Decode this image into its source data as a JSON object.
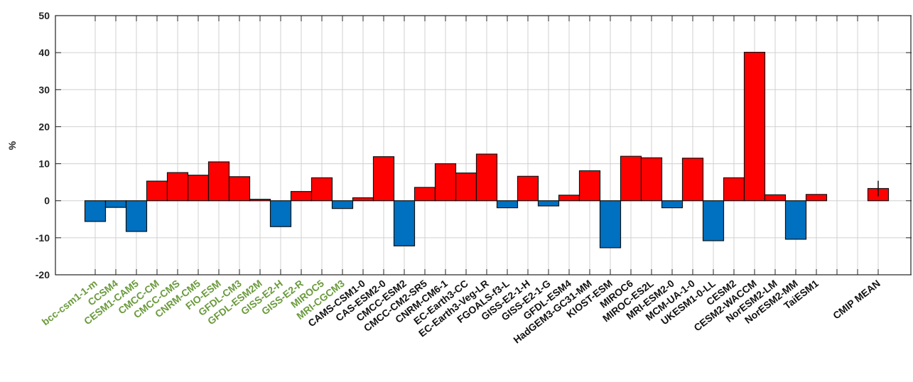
{
  "chart_data": {
    "type": "bar",
    "y_label": "%",
    "categories": [
      "bcc-csm1-1-m",
      "CCSM4",
      "CESM1-CAM5",
      "CMCC-CM",
      "CMCC-CMS",
      "CNRM-CM5",
      "FIO-ESM",
      "GFDL-CM3",
      "GFDL-ESM2M",
      "GISS-E2-H",
      "GISS-E2-R",
      "MIROC5",
      "MRI-CGCM3",
      "CAMS-CSM1-0",
      "CAS-ESM2-0",
      "CMCC-ESM2",
      "CMCC-CM2-SR5",
      "CNRM-CM6-1",
      "EC-Earth3-CC",
      "EC-Earth3-Veg-LR",
      "FGOALS-f3-L",
      "GISS-E2-1-H",
      "GISS-E2-1-G",
      "GFDL-ESM4",
      "HadGEM3-GC31-MM",
      "KIOST-ESM",
      "MIROC6",
      "MIROC-ES2L",
      "MRI-ESM2-0",
      "MCM-UA-1-0",
      "UKESM1-0-LL",
      "CESM2",
      "CESM2-WACCM",
      "NorESM2-LM",
      "NorESM2-MM",
      "TaiESM1",
      null,
      null,
      "CMIP MEAN"
    ],
    "values": [
      -5.6,
      -1.8,
      -8.3,
      5.3,
      7.6,
      6.9,
      10.5,
      6.5,
      0.4,
      -7,
      2.5,
      6.2,
      -2.1,
      0.8,
      11.9,
      -12.2,
      3.6,
      10,
      7.5,
      12.6,
      -1.9,
      6.6,
      -1.4,
      1.5,
      8.1,
      -12.7,
      12,
      11.6,
      -1.9,
      11.5,
      -10.8,
      6.2,
      40.1,
      1.6,
      -10.4,
      1.7,
      0,
      0,
      3.3
    ],
    "errors": [
      null,
      null,
      null,
      null,
      null,
      null,
      null,
      null,
      null,
      null,
      null,
      null,
      null,
      null,
      null,
      null,
      null,
      null,
      null,
      null,
      null,
      null,
      null,
      null,
      null,
      null,
      null,
      null,
      null,
      null,
      null,
      null,
      null,
      null,
      null,
      null,
      null,
      null,
      2.1
    ],
    "positive_color": "#ff0000",
    "negative_color": "#0070c0",
    "category_label_colors": [
      "#6a9a3c",
      "#6a9a3c",
      "#6a9a3c",
      "#6a9a3c",
      "#6a9a3c",
      "#6a9a3c",
      "#6a9a3c",
      "#6a9a3c",
      "#6a9a3c",
      "#6a9a3c",
      "#6a9a3c",
      "#6a9a3c",
      "#6a9a3c",
      "#111111",
      "#111111",
      "#111111",
      "#111111",
      "#111111",
      "#111111",
      "#111111",
      "#111111",
      "#111111",
      "#111111",
      "#111111",
      "#111111",
      "#111111",
      "#111111",
      "#111111",
      "#111111",
      "#111111",
      "#111111",
      "#111111",
      "#111111",
      "#111111",
      "#111111",
      "#111111",
      "#111111",
      "#111111",
      "#111111"
    ],
    "ylim": [
      -20,
      50
    ],
    "yticks": [
      -20,
      -10,
      0,
      10,
      20,
      30,
      40,
      50
    ],
    "grid": true
  }
}
